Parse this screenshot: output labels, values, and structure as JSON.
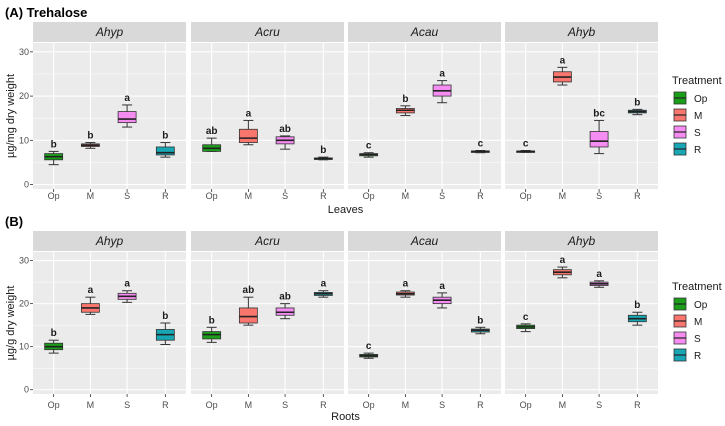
{
  "figure_title": "",
  "colors": {
    "panel_bg": "#ebebeb",
    "strip_bg": "#d9d9d9",
    "grid": "#ffffff",
    "Op": "#1a9e1a",
    "M": "#f8766d",
    "S": "#f58cf2",
    "R": "#17a6b3"
  },
  "legend": {
    "title": "Treatment",
    "items": [
      "Op",
      "M",
      "S",
      "R"
    ]
  },
  "chart_data": [
    {
      "type": "boxplot",
      "label": "(A) Trehalose",
      "ylabel": "µg/mg dry weight",
      "xlabel": "Leaves",
      "ylim": [
        -1,
        32
      ],
      "yticks": [
        0,
        10,
        20,
        30
      ],
      "categories": [
        "Op",
        "M",
        "S",
        "R"
      ],
      "facets": [
        {
          "name": "Ahyp",
          "boxes": [
            {
              "cat": "Op",
              "min": 4.5,
              "q1": 5.6,
              "median": 6.3,
              "q3": 7.0,
              "max": 7.5
            },
            {
              "cat": "M",
              "min": 8.2,
              "q1": 8.6,
              "median": 8.9,
              "q3": 9.2,
              "max": 9.5
            },
            {
              "cat": "S",
              "min": 13.0,
              "q1": 14.0,
              "median": 14.8,
              "q3": 16.5,
              "max": 18.0
            },
            {
              "cat": "R",
              "min": 6.2,
              "q1": 6.7,
              "median": 7.2,
              "q3": 8.5,
              "max": 9.5
            }
          ],
          "letters": [
            "b",
            "b",
            "a",
            "b"
          ]
        },
        {
          "name": "Acru",
          "boxes": [
            {
              "cat": "Op",
              "min": 7.5,
              "q1": 7.5,
              "median": 8.2,
              "q3": 9.0,
              "max": 10.5
            },
            {
              "cat": "M",
              "min": 9.0,
              "q1": 9.5,
              "median": 10.5,
              "q3": 12.5,
              "max": 14.5
            },
            {
              "cat": "S",
              "min": 8.0,
              "q1": 9.2,
              "median": 10.0,
              "q3": 10.8,
              "max": 11.0
            },
            {
              "cat": "R",
              "min": 5.6,
              "q1": 5.8,
              "median": 5.9,
              "q3": 6.0,
              "max": 6.2
            }
          ],
          "letters": [
            "ab",
            "a",
            "ab",
            "b"
          ]
        },
        {
          "name": "Acau",
          "boxes": [
            {
              "cat": "Op",
              "min": 6.2,
              "q1": 6.5,
              "median": 6.8,
              "q3": 7.0,
              "max": 7.2
            },
            {
              "cat": "M",
              "min": 15.6,
              "q1": 16.2,
              "median": 16.8,
              "q3": 17.2,
              "max": 17.8
            },
            {
              "cat": "S",
              "min": 18.5,
              "q1": 20.0,
              "median": 21.2,
              "q3": 22.5,
              "max": 23.5
            },
            {
              "cat": "R",
              "min": 7.2,
              "q1": 7.3,
              "median": 7.5,
              "q3": 7.6,
              "max": 7.7
            }
          ],
          "letters": [
            "c",
            "b",
            "a",
            "c"
          ]
        },
        {
          "name": "Ahyb",
          "boxes": [
            {
              "cat": "Op",
              "min": 7.3,
              "q1": 7.4,
              "median": 7.5,
              "q3": 7.6,
              "max": 7.7
            },
            {
              "cat": "M",
              "min": 22.5,
              "q1": 23.2,
              "median": 24.3,
              "q3": 25.5,
              "max": 26.5
            },
            {
              "cat": "S",
              "min": 7.0,
              "q1": 8.5,
              "median": 9.8,
              "q3": 12.0,
              "max": 14.5
            },
            {
              "cat": "R",
              "min": 15.8,
              "q1": 16.2,
              "median": 16.5,
              "q3": 16.8,
              "max": 17.0
            }
          ],
          "letters": [
            "c",
            "a",
            "bc",
            "b"
          ]
        }
      ]
    },
    {
      "type": "boxplot",
      "label": "(B)",
      "ylabel": "µg/g dry weight",
      "xlabel": "Roots",
      "ylim": [
        -1,
        32
      ],
      "yticks": [
        0,
        10,
        20,
        30
      ],
      "categories": [
        "Op",
        "M",
        "S",
        "R"
      ],
      "facets": [
        {
          "name": "Ahyp",
          "boxes": [
            {
              "cat": "Op",
              "min": 8.5,
              "q1": 9.3,
              "median": 10.0,
              "q3": 10.8,
              "max": 11.5
            },
            {
              "cat": "M",
              "min": 17.5,
              "q1": 18.0,
              "median": 19.0,
              "q3": 20.0,
              "max": 21.5
            },
            {
              "cat": "S",
              "min": 20.3,
              "q1": 21.0,
              "median": 21.7,
              "q3": 22.4,
              "max": 23.0
            },
            {
              "cat": "R",
              "min": 10.5,
              "q1": 11.5,
              "median": 12.8,
              "q3": 14.0,
              "max": 15.5
            }
          ],
          "letters": [
            "b",
            "a",
            "a",
            "b"
          ]
        },
        {
          "name": "Acru",
          "boxes": [
            {
              "cat": "Op",
              "min": 11.0,
              "q1": 11.8,
              "median": 12.8,
              "q3": 13.5,
              "max": 14.5
            },
            {
              "cat": "M",
              "min": 15.0,
              "q1": 15.5,
              "median": 17.0,
              "q3": 19.0,
              "max": 21.5
            },
            {
              "cat": "S",
              "min": 16.5,
              "q1": 17.3,
              "median": 18.0,
              "q3": 19.0,
              "max": 20.0
            },
            {
              "cat": "R",
              "min": 21.5,
              "q1": 21.9,
              "median": 22.3,
              "q3": 22.6,
              "max": 23.0
            }
          ],
          "letters": [
            "b",
            "ab",
            "ab",
            "a"
          ]
        },
        {
          "name": "Acau",
          "boxes": [
            {
              "cat": "Op",
              "min": 7.3,
              "q1": 7.6,
              "median": 7.9,
              "q3": 8.2,
              "max": 8.5
            },
            {
              "cat": "M",
              "min": 21.5,
              "q1": 22.0,
              "median": 22.3,
              "q3": 22.7,
              "max": 23.0
            },
            {
              "cat": "S",
              "min": 19.0,
              "q1": 20.0,
              "median": 20.8,
              "q3": 21.5,
              "max": 22.5
            },
            {
              "cat": "R",
              "min": 13.0,
              "q1": 13.4,
              "median": 13.8,
              "q3": 14.1,
              "max": 14.5
            }
          ],
          "letters": [
            "c",
            "a",
            "a",
            "b"
          ]
        },
        {
          "name": "Ahyb",
          "boxes": [
            {
              "cat": "Op",
              "min": 13.5,
              "q1": 14.2,
              "median": 14.6,
              "q3": 15.0,
              "max": 15.3
            },
            {
              "cat": "M",
              "min": 26.0,
              "q1": 26.7,
              "median": 27.3,
              "q3": 27.9,
              "max": 28.5
            },
            {
              "cat": "S",
              "min": 23.8,
              "q1": 24.2,
              "median": 24.6,
              "q3": 25.0,
              "max": 25.3
            },
            {
              "cat": "R",
              "min": 15.0,
              "q1": 15.8,
              "median": 16.5,
              "q3": 17.3,
              "max": 18.0
            }
          ],
          "letters": [
            "c",
            "a",
            "a",
            "b"
          ]
        }
      ]
    }
  ]
}
